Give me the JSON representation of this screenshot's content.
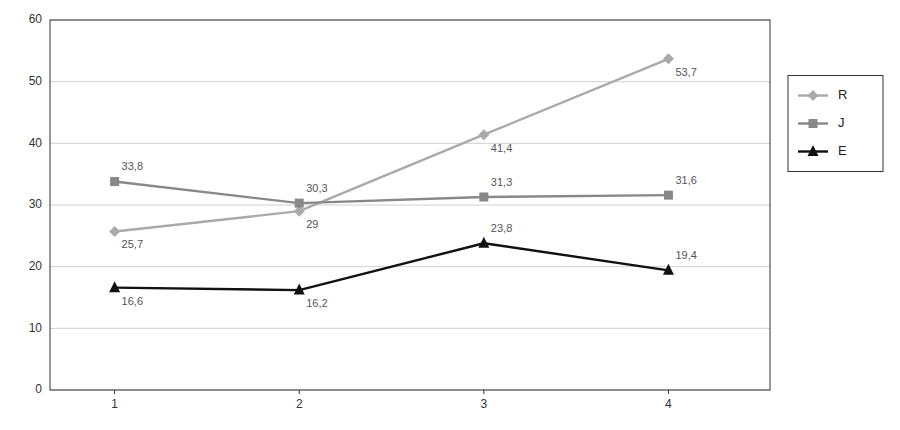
{
  "chart_data": {
    "type": "line",
    "x": [
      1,
      2,
      3,
      4
    ],
    "xlim": [
      0.65,
      4.55
    ],
    "xticks": [
      1,
      2,
      3,
      4
    ],
    "ylim": [
      0,
      60
    ],
    "yticks": [
      0,
      10,
      20,
      30,
      40,
      50,
      60
    ],
    "grid": true,
    "legend": "right",
    "data_labels": true,
    "series": [
      {
        "name": "R",
        "color": "#aaaaaa",
        "marker": "diamond",
        "values": [
          25.7,
          29.0,
          41.4,
          53.7
        ],
        "value_labels": [
          "25,7",
          "29",
          "41,4",
          "53,7"
        ]
      },
      {
        "name": "J",
        "color": "#888888",
        "marker": "square",
        "values": [
          33.8,
          30.3,
          31.3,
          31.6
        ],
        "value_labels": [
          "33,8",
          "30,3",
          "31,3",
          "31,6"
        ]
      },
      {
        "name": "E",
        "color": "#111111",
        "marker": "triangle",
        "values": [
          16.6,
          16.2,
          23.8,
          19.4
        ],
        "value_labels": [
          "16,6",
          "16,2",
          "23,8",
          "19,4"
        ]
      }
    ]
  }
}
